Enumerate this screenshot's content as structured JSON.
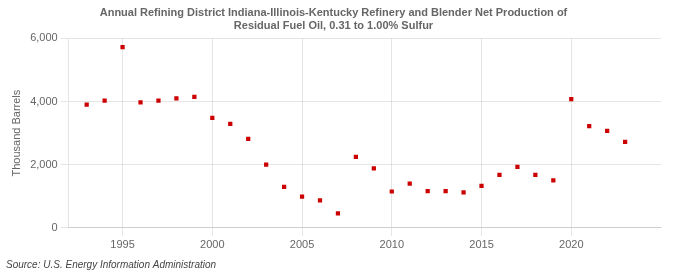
{
  "chart_data": {
    "type": "scatter",
    "title": "Annual Refining District Indiana-Illinois-Kentucky Refinery and Blender Net Production of\nResidual Fuel Oil, 0.31 to 1.00% Sulfur",
    "ylabel": "Thousand Barrels",
    "source": "Source: U.S. Energy Information Administration",
    "x": [
      1993,
      1994,
      1995,
      1996,
      1997,
      1998,
      1999,
      2000,
      2001,
      2002,
      2003,
      2004,
      2005,
      2006,
      2007,
      2008,
      2009,
      2010,
      2011,
      2012,
      2013,
      2014,
      2015,
      2016,
      2017,
      2018,
      2019,
      2020,
      2021,
      2022,
      2023
    ],
    "values": [
      3900,
      4030,
      5720,
      3970,
      4030,
      4100,
      4150,
      3480,
      3290,
      2820,
      2000,
      1300,
      990,
      870,
      460,
      2250,
      1880,
      1150,
      1400,
      1160,
      1160,
      1120,
      1330,
      1680,
      1930,
      1680,
      1500,
      4080,
      3220,
      3070,
      2720
    ],
    "color": "#cc0000",
    "marker": "square",
    "xlim": [
      1992,
      2025
    ],
    "xticks": [
      1995,
      2000,
      2005,
      2010,
      2015,
      2020
    ],
    "ylim": [
      0,
      6000
    ],
    "yticks": [
      0,
      {
        "value": 2000,
        "label": "2,000"
      },
      {
        "value": 4000,
        "label": "4,000"
      },
      {
        "value": 6000,
        "label": "6,000"
      }
    ],
    "grid": true
  }
}
